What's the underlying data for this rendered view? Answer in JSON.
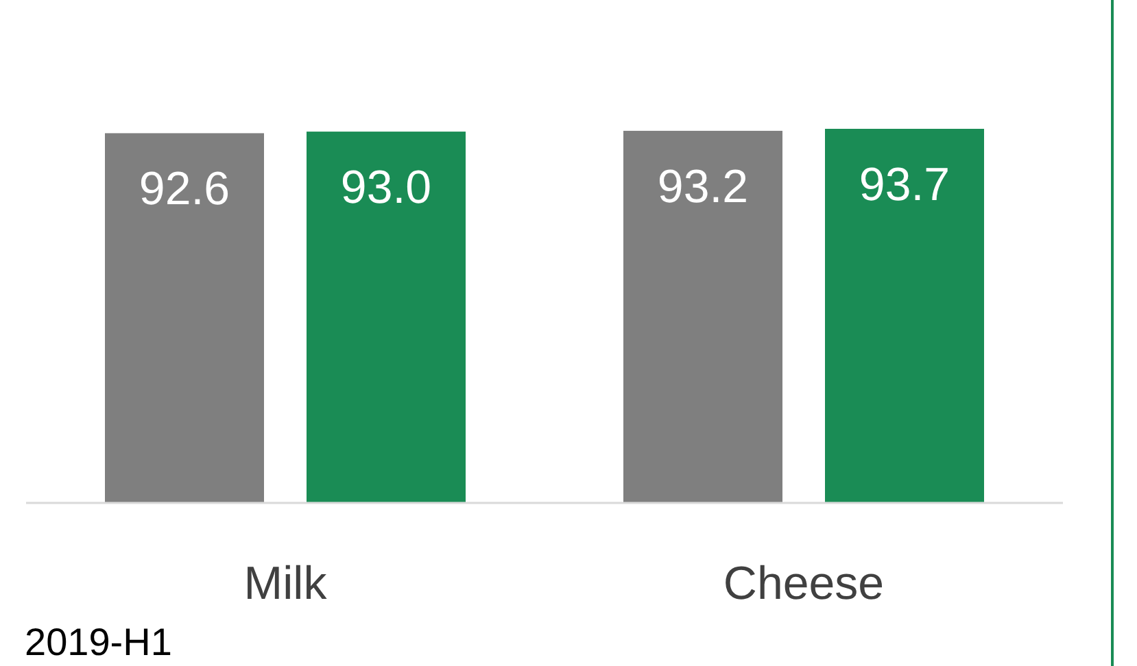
{
  "chart_data": {
    "type": "bar",
    "categories": [
      "Milk",
      "Cheese"
    ],
    "series": [
      {
        "color": "#7f7f7f",
        "values": [
          92.6,
          93.2
        ],
        "value_labels": [
          "92.6",
          "93.2"
        ]
      },
      {
        "color": "#1a8c55",
        "values": [
          93.0,
          93.7
        ],
        "value_labels": [
          "93.0",
          "93.7"
        ]
      }
    ],
    "annotations": [
      "2019-H1"
    ]
  }
}
